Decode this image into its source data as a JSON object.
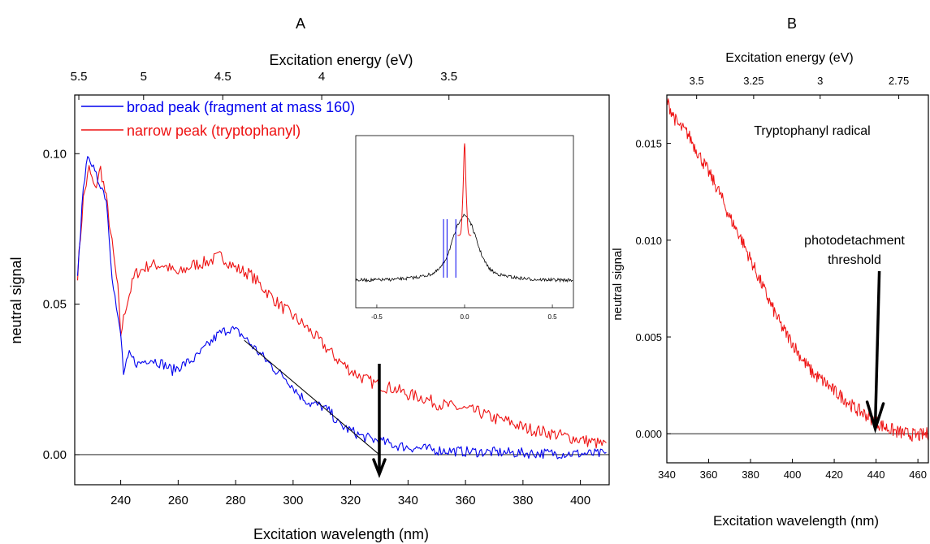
{
  "panel_labels": {
    "a": "A",
    "b": "B"
  },
  "colors": {
    "blue": "#0000ee",
    "red": "#ee1111",
    "black": "#000000"
  },
  "chart_data": [
    {
      "type": "line",
      "panel": "A",
      "xlabel": "Excitation wavelength (nm)",
      "ylabel": "neutral signal",
      "top_xlabel": "Excitation energy (eV)",
      "xlim": [
        224,
        410
      ],
      "ylim": [
        -0.01,
        0.1195
      ],
      "xticks": [
        240,
        260,
        280,
        300,
        320,
        340,
        360,
        380,
        400
      ],
      "xtick_labels": [
        "240",
        "260",
        "280",
        "300",
        "320",
        "340",
        "360",
        "380",
        "400"
      ],
      "yticks": [
        0.0,
        0.05,
        0.1
      ],
      "ytick_labels": [
        "0.00",
        "0.05",
        "0.10"
      ],
      "top_ticks_ev": [
        5.5,
        5,
        4.5,
        4,
        3.5
      ],
      "top_tick_labels": [
        "5.5",
        "5",
        "4.5",
        "4",
        "3.5"
      ],
      "legend_placement": "top-left",
      "series": [
        {
          "name": "broad peak (fragment at mass 160)",
          "color": "#0000ee",
          "points": [
            [
              225,
              0.058
            ],
            [
              227,
              0.09
            ],
            [
              229,
              0.1
            ],
            [
              231,
              0.093
            ],
            [
              233,
              0.09
            ],
            [
              235,
              0.085
            ],
            [
              237,
              0.06
            ],
            [
              239,
              0.045
            ],
            [
              240,
              0.04
            ],
            [
              241,
              0.027
            ],
            [
              243,
              0.033
            ],
            [
              246,
              0.03
            ],
            [
              250,
              0.032
            ],
            [
              255,
              0.03
            ],
            [
              258,
              0.028
            ],
            [
              262,
              0.03
            ],
            [
              266,
              0.032
            ],
            [
              270,
              0.036
            ],
            [
              274,
              0.04
            ],
            [
              278,
              0.042
            ],
            [
              282,
              0.04
            ],
            [
              286,
              0.036
            ],
            [
              290,
              0.032
            ],
            [
              294,
              0.028
            ],
            [
              298,
              0.025
            ],
            [
              302,
              0.02
            ],
            [
              306,
              0.017
            ],
            [
              310,
              0.016
            ],
            [
              313,
              0.014
            ],
            [
              316,
              0.01
            ],
            [
              320,
              0.008
            ],
            [
              324,
              0.006
            ],
            [
              328,
              0.005
            ],
            [
              332,
              0.004
            ],
            [
              336,
              0.003
            ],
            [
              340,
              0.0025
            ],
            [
              350,
              0.0015
            ],
            [
              360,
              0.001
            ],
            [
              370,
              0.0008
            ],
            [
              380,
              0.0005
            ],
            [
              390,
              0.0004
            ],
            [
              400,
              0.0003
            ],
            [
              409,
              0.0002
            ]
          ]
        },
        {
          "name": "narrow peak (tryptophanyl)",
          "color": "#ee1111",
          "points": [
            [
              225,
              0.06
            ],
            [
              227,
              0.085
            ],
            [
              229,
              0.095
            ],
            [
              231,
              0.088
            ],
            [
              233,
              0.095
            ],
            [
              235,
              0.085
            ],
            [
              237,
              0.07
            ],
            [
              239,
              0.055
            ],
            [
              240,
              0.04
            ],
            [
              242,
              0.05
            ],
            [
              245,
              0.06
            ],
            [
              250,
              0.063
            ],
            [
              255,
              0.063
            ],
            [
              260,
              0.06
            ],
            [
              265,
              0.063
            ],
            [
              270,
              0.064
            ],
            [
              275,
              0.066
            ],
            [
              280,
              0.062
            ],
            [
              285,
              0.06
            ],
            [
              290,
              0.055
            ],
            [
              295,
              0.05
            ],
            [
              300,
              0.046
            ],
            [
              305,
              0.042
            ],
            [
              310,
              0.037
            ],
            [
              315,
              0.032
            ],
            [
              320,
              0.028
            ],
            [
              325,
              0.025
            ],
            [
              330,
              0.023
            ],
            [
              335,
              0.022
            ],
            [
              340,
              0.02
            ],
            [
              345,
              0.019
            ],
            [
              350,
              0.017
            ],
            [
              355,
              0.016
            ],
            [
              360,
              0.015
            ],
            [
              365,
              0.014
            ],
            [
              370,
              0.012
            ],
            [
              375,
              0.011
            ],
            [
              380,
              0.009
            ],
            [
              385,
              0.008
            ],
            [
              390,
              0.007
            ],
            [
              395,
              0.006
            ],
            [
              400,
              0.005
            ],
            [
              405,
              0.004
            ],
            [
              409,
              0.003
            ]
          ]
        }
      ],
      "fit_line": [
        [
          283,
          0.038
        ],
        [
          330,
          0.0
        ]
      ],
      "threshold_arrow_nm": 330,
      "inset": {
        "xticks": [
          -0.5,
          0.0,
          0.5
        ],
        "xtick_labels": [
          "-0.5",
          "0.0",
          "0.5"
        ],
        "xlim": [
          -0.62,
          0.62
        ]
      }
    },
    {
      "type": "line",
      "panel": "B",
      "title": "Tryptophanyl radical",
      "xlabel": "Excitation wavelength (nm)",
      "ylabel": "neutral signal",
      "top_xlabel": "Excitation energy (eV)",
      "xlim": [
        340,
        465
      ],
      "ylim": [
        -0.0015,
        0.0175
      ],
      "xticks": [
        340,
        360,
        380,
        400,
        420,
        440,
        460
      ],
      "xtick_labels": [
        "340",
        "360",
        "380",
        "400",
        "420",
        "440",
        "460"
      ],
      "yticks": [
        0.0,
        0.005,
        0.01,
        0.015
      ],
      "ytick_labels": [
        "0.000",
        "0.005",
        "0.010",
        "0.015"
      ],
      "top_ticks_ev": [
        3.5,
        3.25,
        3,
        2.75
      ],
      "top_tick_labels": [
        "3.5",
        "3.25",
        "3",
        "2.75"
      ],
      "annotation": "photodetachment\nthreshold",
      "threshold_arrow_nm": 440,
      "series": [
        {
          "color": "#ee1111",
          "points": [
            [
              340,
              0.0172
            ],
            [
              345,
              0.016
            ],
            [
              350,
              0.0155
            ],
            [
              355,
              0.0145
            ],
            [
              360,
              0.0135
            ],
            [
              365,
              0.0125
            ],
            [
              370,
              0.0112
            ],
            [
              375,
              0.0102
            ],
            [
              380,
              0.009
            ],
            [
              385,
              0.0078
            ],
            [
              390,
              0.0066
            ],
            [
              395,
              0.0055
            ],
            [
              400,
              0.0047
            ],
            [
              405,
              0.0038
            ],
            [
              410,
              0.0031
            ],
            [
              415,
              0.0027
            ],
            [
              420,
              0.0022
            ],
            [
              425,
              0.0018
            ],
            [
              430,
              0.0013
            ],
            [
              435,
              0.001
            ],
            [
              440,
              0.0006
            ],
            [
              445,
              0.0003
            ],
            [
              450,
              0.0001
            ],
            [
              455,
              0.0
            ],
            [
              460,
              -0.0001
            ],
            [
              465,
              0.0
            ]
          ]
        }
      ]
    }
  ]
}
